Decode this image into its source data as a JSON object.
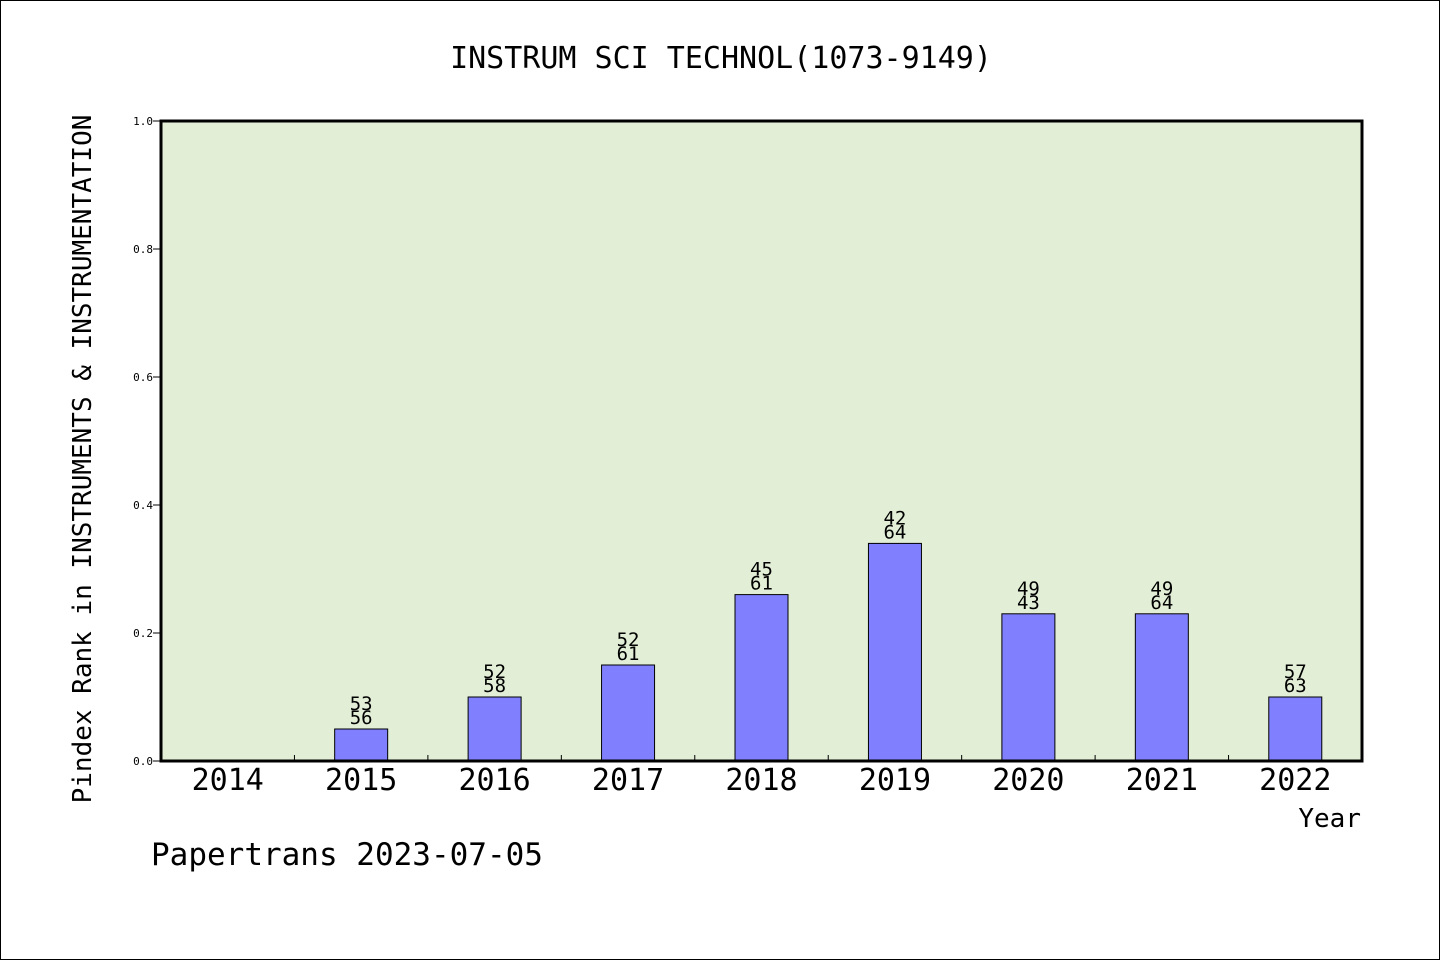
{
  "chart_data": {
    "type": "bar",
    "title": "INSTRUM SCI TECHNOL(1073-9149)",
    "xlabel": "Year",
    "ylabel": "Pindex Rank in INSTRUMENTS & INSTRUMENTATION",
    "ylim": [
      0,
      1.0
    ],
    "yticks": [
      "0.0",
      "0.2",
      "0.4",
      "0.6",
      "0.8",
      "1.0"
    ],
    "categories": [
      "2014",
      "2015",
      "2016",
      "2017",
      "2018",
      "2019",
      "2020",
      "2021",
      "2022"
    ],
    "values": [
      0,
      0.05,
      0.1,
      0.15,
      0.26,
      0.34,
      0.23,
      0.23,
      0.1
    ],
    "label_top": [
      "",
      "53",
      "52",
      "52",
      "45",
      "42",
      "49",
      "49",
      "57"
    ],
    "label_bottom": [
      "",
      "56",
      "58",
      "61",
      "61",
      "64",
      "43",
      "64",
      "63"
    ],
    "grid": false,
    "colors": {
      "plot_bg": "#e2efd6",
      "bar_fill": "#8080ff",
      "bar_stroke": "#000000"
    }
  },
  "footer": {
    "credit": "Papertrans 2023-07-05"
  }
}
